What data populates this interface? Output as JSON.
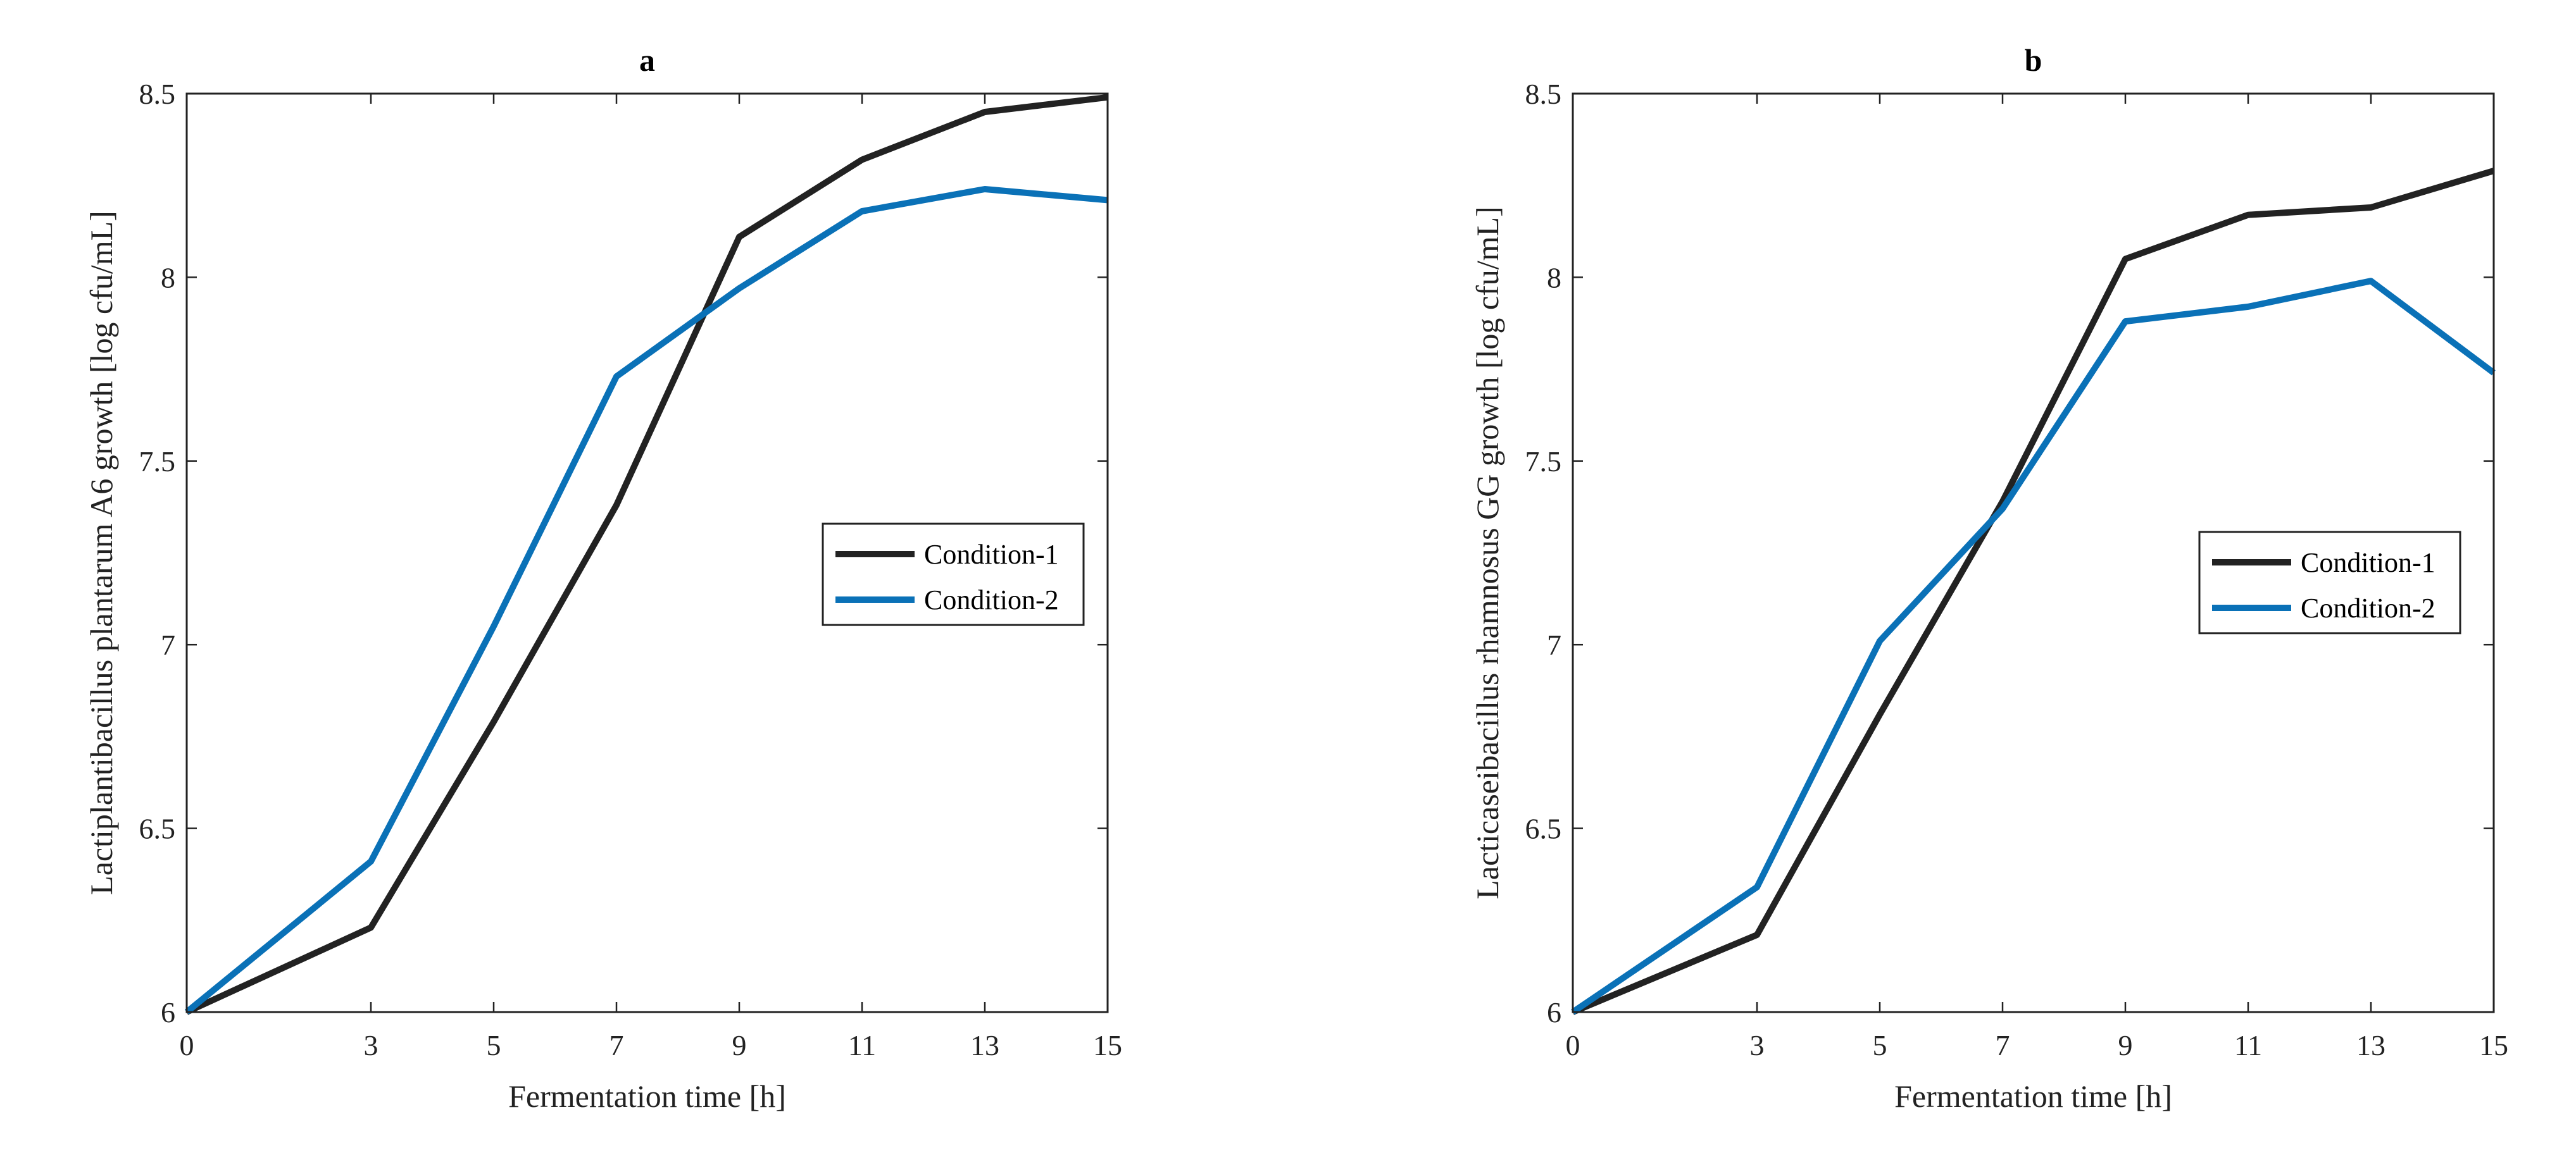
{
  "chart_data": [
    {
      "type": "line",
      "title": "a",
      "xlabel": "Fermentation time [h]",
      "ylabel": "Lactiplantibacillus plantarum A6 growth [log cfu/mL]",
      "xlim": [
        0,
        15
      ],
      "ylim": [
        6,
        8.5
      ],
      "xticks": [
        0,
        3,
        5,
        7,
        9,
        11,
        13,
        15
      ],
      "yticks": [
        6,
        6.5,
        7,
        7.5,
        8,
        8.5
      ],
      "grid": false,
      "legend_position": "right",
      "x": [
        0,
        3,
        5,
        7,
        9,
        11,
        13,
        15
      ],
      "series": [
        {
          "name": "Condition-1",
          "color": "#222222",
          "values": [
            6.0,
            6.23,
            6.79,
            7.38,
            8.11,
            8.32,
            8.45,
            8.49
          ]
        },
        {
          "name": "Condition-2",
          "color": "#0A71B7",
          "values": [
            6.0,
            6.41,
            7.05,
            7.73,
            7.97,
            8.18,
            8.24,
            8.21
          ]
        }
      ]
    },
    {
      "type": "line",
      "title": "b",
      "xlabel": "Fermentation time [h]",
      "ylabel": "Lacticaseibacillus rhamnosus GG growth [log cfu/mL]",
      "xlim": [
        0,
        15
      ],
      "ylim": [
        6,
        8.5
      ],
      "xticks": [
        0,
        3,
        5,
        7,
        9,
        11,
        13,
        15
      ],
      "yticks": [
        6,
        6.5,
        7,
        7.5,
        8,
        8.5
      ],
      "grid": false,
      "legend_position": "right",
      "x": [
        0,
        3,
        5,
        7,
        9,
        11,
        13,
        15
      ],
      "series": [
        {
          "name": "Condition-1",
          "color": "#222222",
          "values": [
            6.0,
            6.21,
            6.81,
            7.39,
            8.05,
            8.17,
            8.19,
            8.29
          ]
        },
        {
          "name": "Condition-2",
          "color": "#0A71B7",
          "values": [
            6.0,
            6.34,
            7.01,
            7.37,
            7.88,
            7.92,
            7.99,
            7.74
          ]
        }
      ]
    }
  ]
}
